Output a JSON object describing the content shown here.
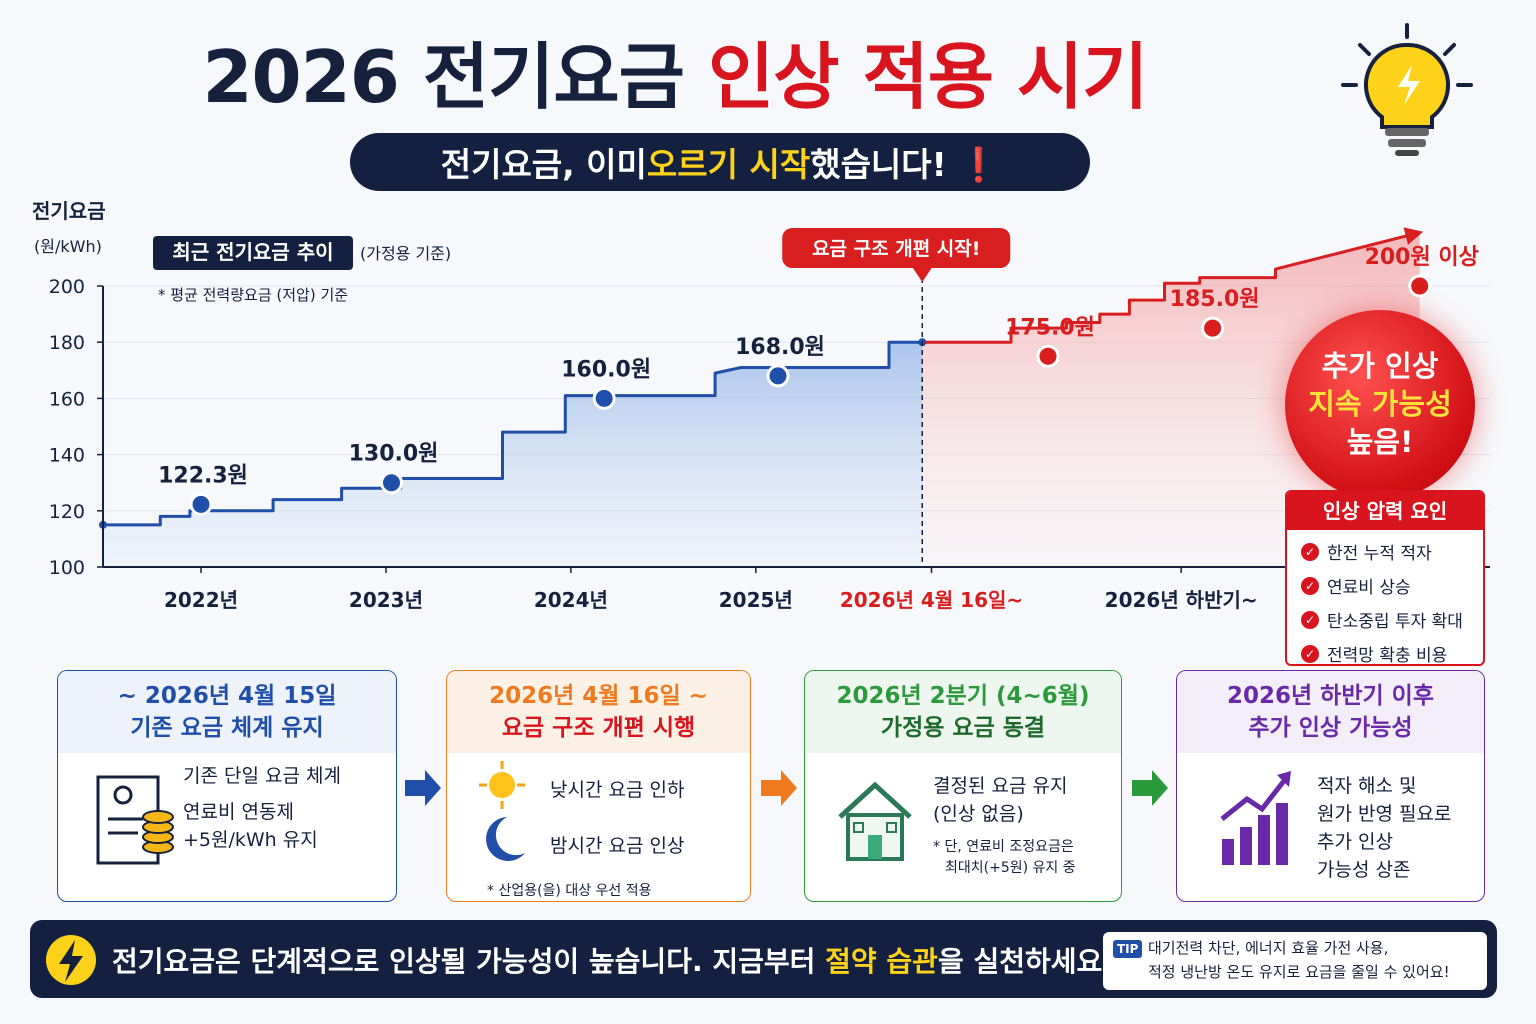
{
  "header": {
    "title_dark": "2026 전기요금",
    "title_red": "인상 적용 시기",
    "banner": [
      "전기요금, 이미 ",
      "오르기 시작",
      "했습니다! ❗"
    ]
  },
  "chart_data": {
    "type": "line",
    "title": "최근 전기요금 추이",
    "subtitle": "(가정용 기준)",
    "note": "* 평균 전력량요금 (저압) 기준",
    "ylabel": "전기요금",
    "yunit": "(원/kWh)",
    "annotation": "요금 구조 개편 시작!",
    "xlim": [
      2021.47,
      2028.97
    ],
    "xticks": [
      {
        "value": 2022,
        "label": "2022년"
      },
      {
        "value": 2023,
        "label": "2023년"
      },
      {
        "value": 2024,
        "label": "2024년"
      },
      {
        "value": 2025,
        "label": "2025년"
      },
      {
        "value": 2025.95,
        "label": "2026년 4월 16일~"
      },
      {
        "value": 2027.3,
        "label": "2026년 하반기~"
      }
    ],
    "ylim": [
      100,
      200
    ],
    "yticks": [
      100,
      120,
      140,
      160,
      180,
      200
    ],
    "grid": true,
    "series": [
      {
        "color": "#1f4fa8",
        "x": [
          2021.47,
          2021.78,
          2021.78,
          2021.94,
          2021.94,
          2022.39,
          2022.39,
          2022.76,
          2022.76,
          2023.08,
          2023.08,
          2023.63,
          2023.63,
          2023.97,
          2023.97,
          2024.78,
          2024.78,
          2024.92,
          2025.72,
          2025.72,
          2025.9
        ],
        "values": [
          115,
          115,
          118,
          118,
          120,
          120,
          124,
          124,
          128,
          128,
          131.5,
          131.5,
          148,
          148,
          161,
          161,
          169,
          171,
          171,
          180,
          180
        ]
      },
      {
        "color": "#d81e1e",
        "x": [
          2025.9,
          2026.38,
          2026.38,
          2026.68,
          2026.68,
          2026.86,
          2026.86,
          2027.02,
          2027.02,
          2027.21,
          2027.21,
          2027.4,
          2027.4,
          2027.81,
          2027.81,
          2028.59
        ],
        "values": [
          180,
          180,
          185,
          185,
          187,
          187,
          190,
          190,
          195,
          195,
          201,
          201,
          203,
          203,
          206,
          219
        ]
      }
    ],
    "markers": [
      {
        "color": "#1f4fa8",
        "x": [
          2022.0,
          2023.03,
          2024.18,
          2025.12
        ],
        "values": [
          122.3,
          130.0,
          160.0,
          168.0
        ],
        "value_labels": [
          "122.3원",
          "130.0원",
          "160.0원",
          "168.0원"
        ]
      },
      {
        "color": "#d81e1e",
        "x": [
          2026.58,
          2027.47,
          2028.59
        ],
        "values": [
          175.0,
          185.0,
          200
        ],
        "value_labels": [
          "175.0원",
          "185.0원",
          "200원 이상"
        ]
      }
    ]
  },
  "callout": {
    "lines": [
      "추가 인상",
      "지속 가능성",
      "높음!"
    ]
  },
  "factors": {
    "title": "인상 압력 요인",
    "items": [
      "한전 누적 적자",
      "연료비 상승",
      "탄소중립 투자 확대",
      "전력망 확충 비용"
    ]
  },
  "cards": [
    {
      "head": [
        "~ 2026년 4월 15일",
        "기존 요금 체계 유지"
      ],
      "items": [
        "기존 단일 요금 체계",
        "연료비 연동제",
        "+5원/kWh 유지"
      ]
    },
    {
      "head": [
        "2026년 4월 16일 ~",
        "요금 구조 개편 시행"
      ],
      "items": [
        "낮시간 요금 인하",
        "밤시간 요금 인상"
      ],
      "note": [
        "* 산업용(을) 대상 우선 적용"
      ]
    },
    {
      "head": [
        "2026년 2분기 (4~6월)",
        "가정용 요금 동결"
      ],
      "items": [
        "결정된 요금 유지",
        "(인상 없음)"
      ],
      "note": [
        "* 단, 연료비 조정요금은",
        "최대치(+5원) 유지 중"
      ]
    },
    {
      "head": [
        "2026년 하반기 이후",
        "추가 인상 가능성"
      ],
      "items": [
        "적자 해소 및",
        "원가 반영 필요로",
        "추가 인상",
        "가능성 상존"
      ]
    }
  ],
  "footer": {
    "message": [
      "전기요금은 단계적으로 인상될 가능성이 높습니다. 지금부터 ",
      "절약 습관",
      "을 실천하세요!"
    ],
    "tip_badge": "TIP",
    "tip": [
      "대기전력 차단, 에너지 효율 가전 사용,",
      "적정 냉난방 온도 유지로 요금을 줄일 수 있어요!"
    ]
  }
}
